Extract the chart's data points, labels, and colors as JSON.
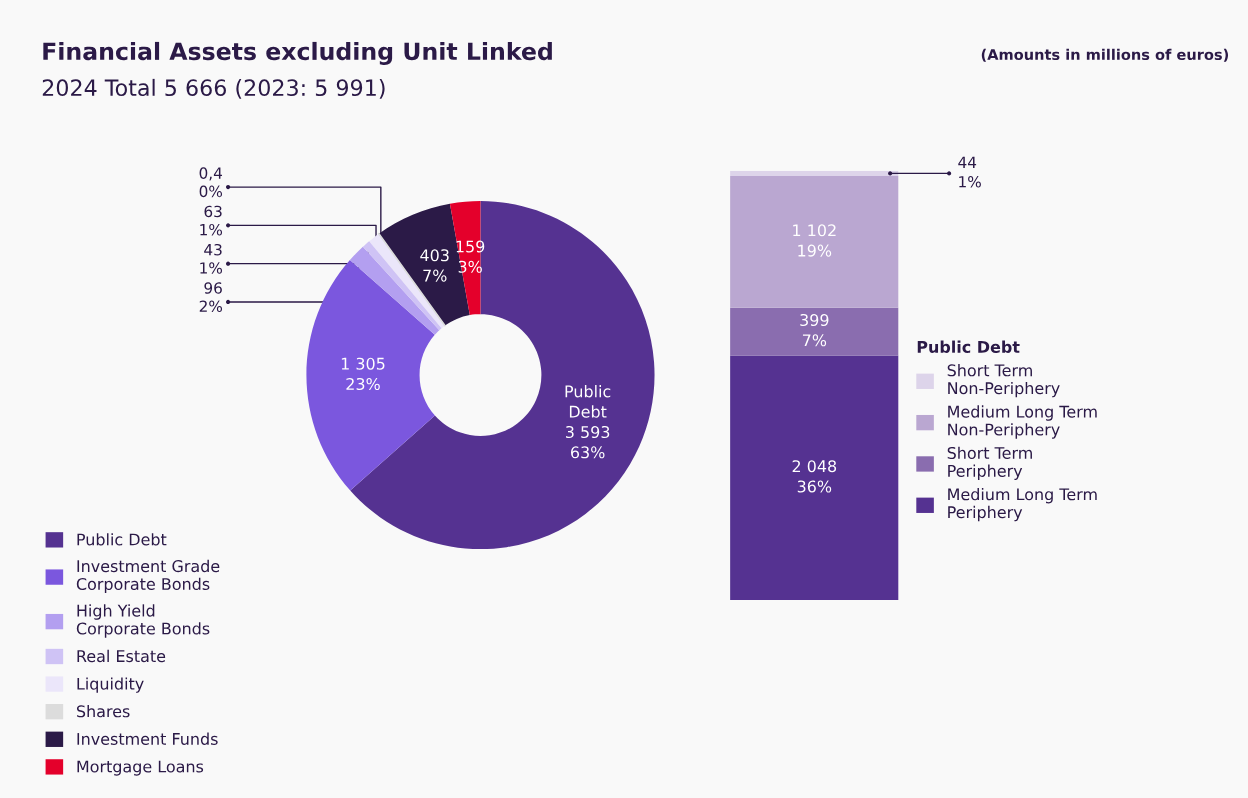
{
  "chart_data": [
    {
      "type": "donut",
      "title": "Financial Assets excluding Unit Linked",
      "subtitle": "2024 Total 5 666 (2023: 5 991)",
      "annotations": [
        "(Amounts in millions of euros)"
      ],
      "categories": [
        "Public Debt",
        "Investment Grade\nCorporate Bonds",
        "High Yield\nCorporate Bonds",
        "Real Estate",
        "Liquidity",
        "Shares",
        "Investment Funds",
        "Mortgage Loans"
      ],
      "values": [
        3593,
        1305,
        96,
        43,
        63,
        0.4,
        403,
        159
      ],
      "value_labels": [
        "Public\nDebt\n3 593\n63%",
        "1 305\n23%",
        "96\n2%",
        "43\n1%",
        "63\n1%",
        "0,4\n0%",
        "403\n7%",
        "159\n3%"
      ],
      "colors": [
        "#553291",
        "#7b57de",
        "#b39ff0",
        "#cfc3f5",
        "#ebe6fa",
        "#dcdcdc",
        "#2b1a47",
        "#e4002b"
      ],
      "legend": "bottom left"
    },
    {
      "type": "bar",
      "stacked": true,
      "categories": [
        null
      ],
      "legend_title": "Public Debt",
      "legend": "right",
      "series": [
        {
          "name": "Medium Long Term\nPeriphery",
          "color": "#553291",
          "values": [
            2048
          ],
          "value_labels": [
            "2 048\n36%"
          ]
        },
        {
          "name": "Short Term\nPeriphery",
          "color": "#8a6daf",
          "values": [
            399
          ],
          "value_labels": [
            "399\n7%"
          ]
        },
        {
          "name": "Medium Long Term\nNon-Periphery",
          "color": "#baa7d1",
          "values": [
            1102
          ],
          "value_labels": [
            "1 102\n19%"
          ]
        },
        {
          "name": "Short Term\nNon-Periphery",
          "color": "#ddd4ea",
          "values": [
            44
          ],
          "value_labels": [
            "44\n1%"
          ]
        }
      ]
    }
  ]
}
